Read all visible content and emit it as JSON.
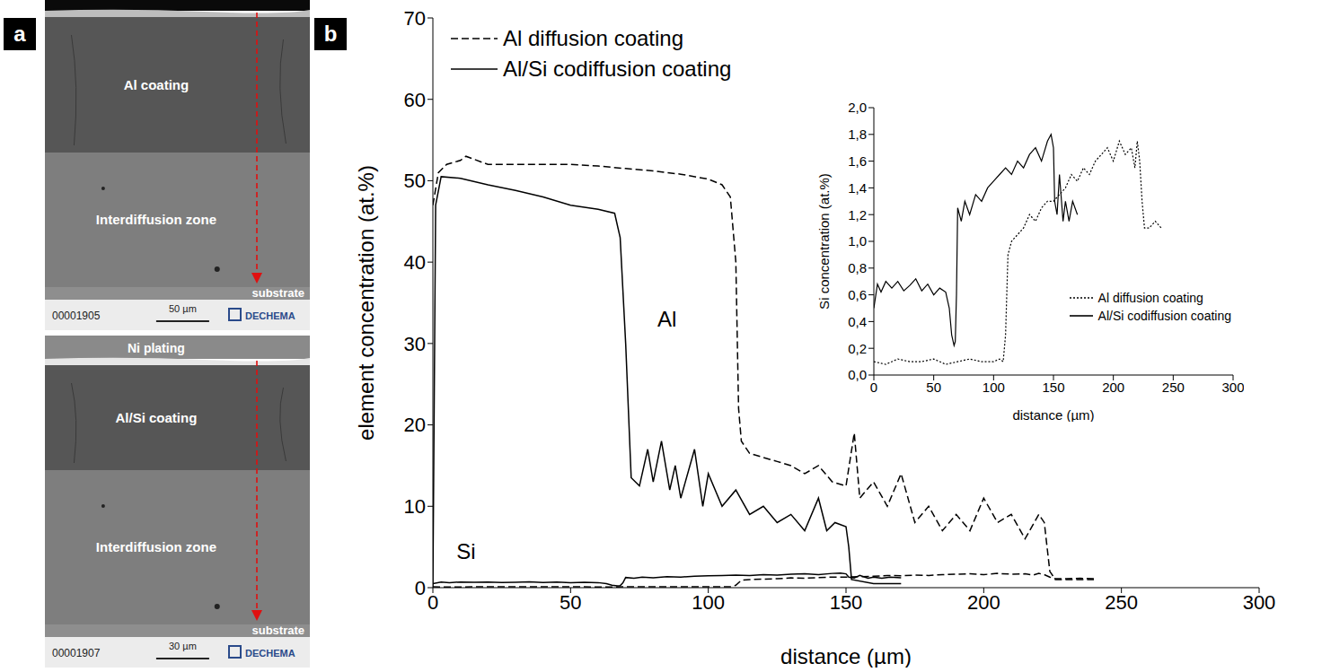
{
  "panel_labels": [
    "a",
    "b"
  ],
  "micrographs": [
    {
      "id": "00001905",
      "scale_bar": "50 µm",
      "logo": "DECHEMA",
      "labels": {
        "coating": "Al coating",
        "interdiffusion": "Interdiffusion zone",
        "substrate": "substrate"
      }
    },
    {
      "id": "00001907",
      "scale_bar": "30 µm",
      "logo": "DECHEMA",
      "labels": {
        "plating": "Ni plating",
        "coating": "Al/Si coating",
        "interdiffusion": "Interdiffusion zone",
        "substrate": "substrate"
      }
    }
  ],
  "chart_data": [
    {
      "type": "line",
      "xlabel": "distance (µm)",
      "ylabel": "element concentration (at.%)",
      "xlim": [
        0,
        300
      ],
      "ylim": [
        0,
        70
      ],
      "xticks": [
        0,
        50,
        100,
        150,
        200,
        250,
        300
      ],
      "yticks": [
        0,
        10,
        20,
        30,
        40,
        50,
        60,
        70
      ],
      "legend": "upper left",
      "annotations": [
        {
          "text": "Al",
          "x": 85,
          "y": 33
        },
        {
          "text": "Si",
          "x": 12,
          "y": 4.5
        }
      ],
      "series": [
        {
          "name": "Al diffusion coating",
          "color": "#000000",
          "line_style": "dashed",
          "x": [
            0,
            2,
            5,
            10,
            12,
            20,
            30,
            40,
            50,
            60,
            70,
            80,
            90,
            100,
            105,
            108,
            110,
            111,
            112,
            115,
            120,
            125,
            130,
            135,
            140,
            145,
            150,
            153,
            155,
            160,
            165,
            170,
            175,
            180,
            185,
            190,
            195,
            200,
            205,
            210,
            215,
            220,
            222,
            224,
            226,
            240
          ],
          "values": [
            47,
            51,
            52,
            52.5,
            53,
            52,
            52,
            52,
            52,
            51.8,
            51.5,
            51.2,
            50.8,
            50.2,
            49.5,
            48,
            40,
            22,
            18,
            16.5,
            16,
            15.5,
            15,
            14,
            15,
            13,
            12.5,
            19,
            11,
            13,
            10,
            14,
            8,
            10,
            7,
            9,
            7,
            11,
            8,
            9,
            6,
            9,
            8,
            2,
            1,
            1
          ]
        },
        {
          "name": "Al/Si codiffusion coating",
          "color": "#000000",
          "line_style": "solid",
          "x": [
            0,
            1,
            3,
            10,
            20,
            30,
            40,
            50,
            60,
            66,
            68,
            70,
            72,
            75,
            78,
            80,
            83,
            86,
            88,
            90,
            95,
            98,
            100,
            105,
            110,
            115,
            120,
            125,
            130,
            135,
            140,
            143,
            146,
            150,
            151,
            152,
            160,
            170
          ],
          "values": [
            0,
            47,
            50.5,
            50.3,
            49.5,
            48.8,
            48,
            47,
            46.5,
            46,
            43,
            30,
            13.5,
            12.5,
            17,
            13,
            18,
            12,
            15,
            11,
            17,
            10,
            14,
            10,
            12,
            9,
            10,
            8,
            9,
            7,
            11,
            7,
            8,
            7.5,
            5,
            1,
            0.5,
            0.5
          ]
        },
        {
          "name": "Al diffusion coating",
          "color": "#000000",
          "line_style": "dashed",
          "x": [
            0,
            10,
            20,
            30,
            40,
            50,
            60,
            70,
            80,
            90,
            100,
            105,
            108,
            110,
            112,
            115,
            120,
            125,
            130,
            135,
            140,
            145,
            150,
            155,
            160,
            165,
            170,
            175,
            180,
            185,
            190,
            195,
            200,
            205,
            210,
            215,
            218,
            220,
            222,
            224,
            226,
            230,
            235,
            240
          ],
          "values": [
            0.1,
            0.08,
            0.12,
            0.1,
            0.1,
            0.12,
            0.08,
            0.1,
            0.12,
            0.1,
            0.1,
            0.12,
            0.1,
            0.3,
            0.9,
            1.0,
            1.05,
            1.1,
            1.2,
            1.15,
            1.25,
            1.3,
            1.3,
            1.35,
            1.4,
            1.5,
            1.45,
            1.55,
            1.5,
            1.6,
            1.65,
            1.7,
            1.6,
            1.75,
            1.65,
            1.7,
            1.55,
            1.75,
            1.6,
            1.3,
            1.1,
            1.1,
            1.15,
            1.1
          ]
        },
        {
          "name": "Al/Si codiffusion coating",
          "color": "#000000",
          "line_style": "solid",
          "x": [
            0,
            3,
            6,
            10,
            15,
            20,
            25,
            30,
            35,
            40,
            45,
            50,
            55,
            60,
            63,
            65,
            67,
            68,
            69,
            70,
            73,
            76,
            80,
            85,
            90,
            95,
            100,
            105,
            110,
            115,
            120,
            125,
            130,
            135,
            140,
            145,
            148,
            150,
            151,
            153,
            155,
            158,
            160,
            163,
            166,
            170
          ],
          "values": [
            0.5,
            0.68,
            0.62,
            0.7,
            0.65,
            0.7,
            0.63,
            0.67,
            0.72,
            0.63,
            0.68,
            0.6,
            0.65,
            0.62,
            0.5,
            0.3,
            0.22,
            0.25,
            0.6,
            1.25,
            1.15,
            1.3,
            1.2,
            1.35,
            1.3,
            1.4,
            1.45,
            1.5,
            1.55,
            1.5,
            1.6,
            1.55,
            1.65,
            1.7,
            1.6,
            1.75,
            1.8,
            1.7,
            1.3,
            1.2,
            1.5,
            1.15,
            1.3,
            1.15,
            1.3,
            1.2
          ]
        }
      ]
    },
    {
      "type": "line",
      "xlabel": "distance (µm)",
      "ylabel": "Si concentration (at.%)",
      "xlim": [
        0,
        300
      ],
      "ylim": [
        0,
        2
      ],
      "xticks": [
        0,
        50,
        100,
        150,
        200,
        250,
        300
      ],
      "yticks": [
        {
          "value": 0,
          "label": "0,0"
        },
        {
          "value": 0.2,
          "label": "0,2"
        },
        {
          "value": 0.4,
          "label": "0,4"
        },
        {
          "value": 0.6,
          "label": "0,6"
        },
        {
          "value": 0.8,
          "label": "0,8"
        },
        {
          "value": 1.0,
          "label": "1,0"
        },
        {
          "value": 1.2,
          "label": "1,2"
        },
        {
          "value": 1.4,
          "label": "1,4"
        },
        {
          "value": 1.6,
          "label": "1,6"
        },
        {
          "value": 1.8,
          "label": "1,8"
        },
        {
          "value": 2.0,
          "label": "2,0"
        }
      ],
      "legend": "lower right",
      "series": [
        {
          "name": "Al diffusion coating",
          "color": "#000000",
          "line_style": "dotted",
          "x": [
            0,
            10,
            20,
            30,
            40,
            50,
            60,
            70,
            80,
            90,
            100,
            105,
            108,
            110,
            112,
            115,
            120,
            125,
            130,
            135,
            140,
            145,
            150,
            155,
            160,
            165,
            170,
            175,
            180,
            185,
            190,
            195,
            200,
            205,
            210,
            215,
            218,
            220,
            222,
            224,
            226,
            230,
            235,
            240
          ],
          "values": [
            0.1,
            0.08,
            0.12,
            0.1,
            0.1,
            0.12,
            0.08,
            0.1,
            0.12,
            0.1,
            0.1,
            0.12,
            0.1,
            0.3,
            0.9,
            1.0,
            1.05,
            1.1,
            1.2,
            1.15,
            1.25,
            1.3,
            1.3,
            1.35,
            1.4,
            1.5,
            1.45,
            1.55,
            1.5,
            1.6,
            1.65,
            1.7,
            1.6,
            1.75,
            1.65,
            1.7,
            1.55,
            1.75,
            1.6,
            1.3,
            1.1,
            1.1,
            1.15,
            1.1
          ]
        },
        {
          "name": "Al/Si codiffusion coating",
          "color": "#000000",
          "line_style": "solid",
          "x": [
            0,
            3,
            6,
            10,
            15,
            20,
            25,
            30,
            35,
            40,
            45,
            50,
            55,
            60,
            63,
            65,
            67,
            68,
            69,
            70,
            73,
            76,
            80,
            85,
            90,
            95,
            100,
            105,
            110,
            115,
            120,
            125,
            130,
            135,
            140,
            145,
            148,
            150,
            151,
            153,
            155,
            158,
            160,
            163,
            166,
            170
          ],
          "values": [
            0.5,
            0.68,
            0.62,
            0.7,
            0.65,
            0.7,
            0.63,
            0.67,
            0.72,
            0.63,
            0.68,
            0.6,
            0.65,
            0.62,
            0.5,
            0.3,
            0.22,
            0.25,
            0.6,
            1.25,
            1.15,
            1.3,
            1.2,
            1.35,
            1.3,
            1.4,
            1.45,
            1.5,
            1.55,
            1.5,
            1.6,
            1.55,
            1.65,
            1.7,
            1.6,
            1.75,
            1.8,
            1.7,
            1.3,
            1.2,
            1.5,
            1.15,
            1.3,
            1.15,
            1.3,
            1.2
          ]
        }
      ]
    }
  ]
}
